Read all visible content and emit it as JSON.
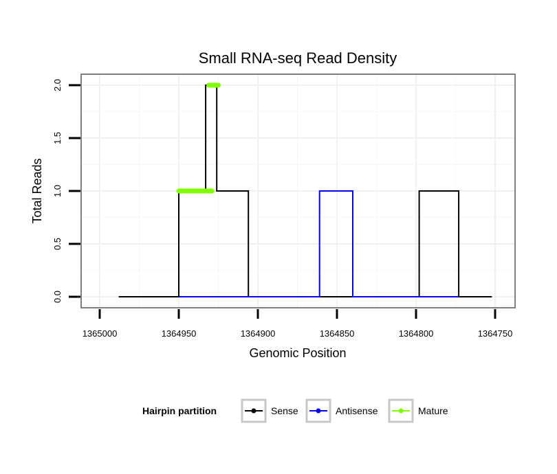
{
  "chart_data": {
    "type": "line",
    "title": "Small RNA-seq Read Density",
    "xlabel": "Genomic Position",
    "ylabel": "Total Reads",
    "xlim": [
      1365000,
      1364750
    ],
    "ylim": [
      0,
      2
    ],
    "x_reversed": true,
    "x_ticks": [
      1365000,
      1364950,
      1364900,
      1364850,
      1364800,
      1364750
    ],
    "x_tick_labels": [
      "1365000",
      "1364950",
      "1364900",
      "1364850",
      "1364800",
      "1364750"
    ],
    "y_ticks": [
      0,
      0.5,
      1,
      1.5,
      2
    ],
    "y_tick_labels": [
      "0.0",
      "0.5",
      "1.0",
      "1.5",
      "2.0"
    ],
    "grid": true,
    "legend": {
      "title": "Hairpin partition",
      "position": "bottom",
      "entries": [
        "Sense",
        "Antisense",
        "Mature"
      ]
    },
    "series": [
      {
        "name": "Sense",
        "color": "#000000",
        "segments": [
          [
            [
              1364988,
              0
            ],
            [
              1364950,
              0
            ],
            [
              1364950,
              1
            ],
            [
              1364933,
              1
            ],
            [
              1364933,
              2
            ],
            [
              1364926,
              2
            ],
            [
              1364926,
              1
            ],
            [
              1364906,
              1
            ],
            [
              1364906,
              0
            ],
            [
              1364798,
              0
            ],
            [
              1364798,
              1
            ],
            [
              1364773,
              1
            ],
            [
              1364773,
              0
            ],
            [
              1364752,
              0
            ]
          ]
        ]
      },
      {
        "name": "Antisense",
        "color": "#0000ee",
        "segments": [
          [
            [
              1364950,
              0
            ],
            [
              1364861,
              0
            ],
            [
              1364861,
              1
            ],
            [
              1364840,
              1
            ],
            [
              1364840,
              0
            ],
            [
              1364773,
              0
            ]
          ]
        ]
      },
      {
        "name": "Mature",
        "color": "#7fff00",
        "segments": [
          [
            [
              1364950,
              1
            ],
            [
              1364929,
              1
            ]
          ],
          [
            [
              1364931,
              2
            ],
            [
              1364925,
              2
            ]
          ]
        ]
      }
    ]
  }
}
